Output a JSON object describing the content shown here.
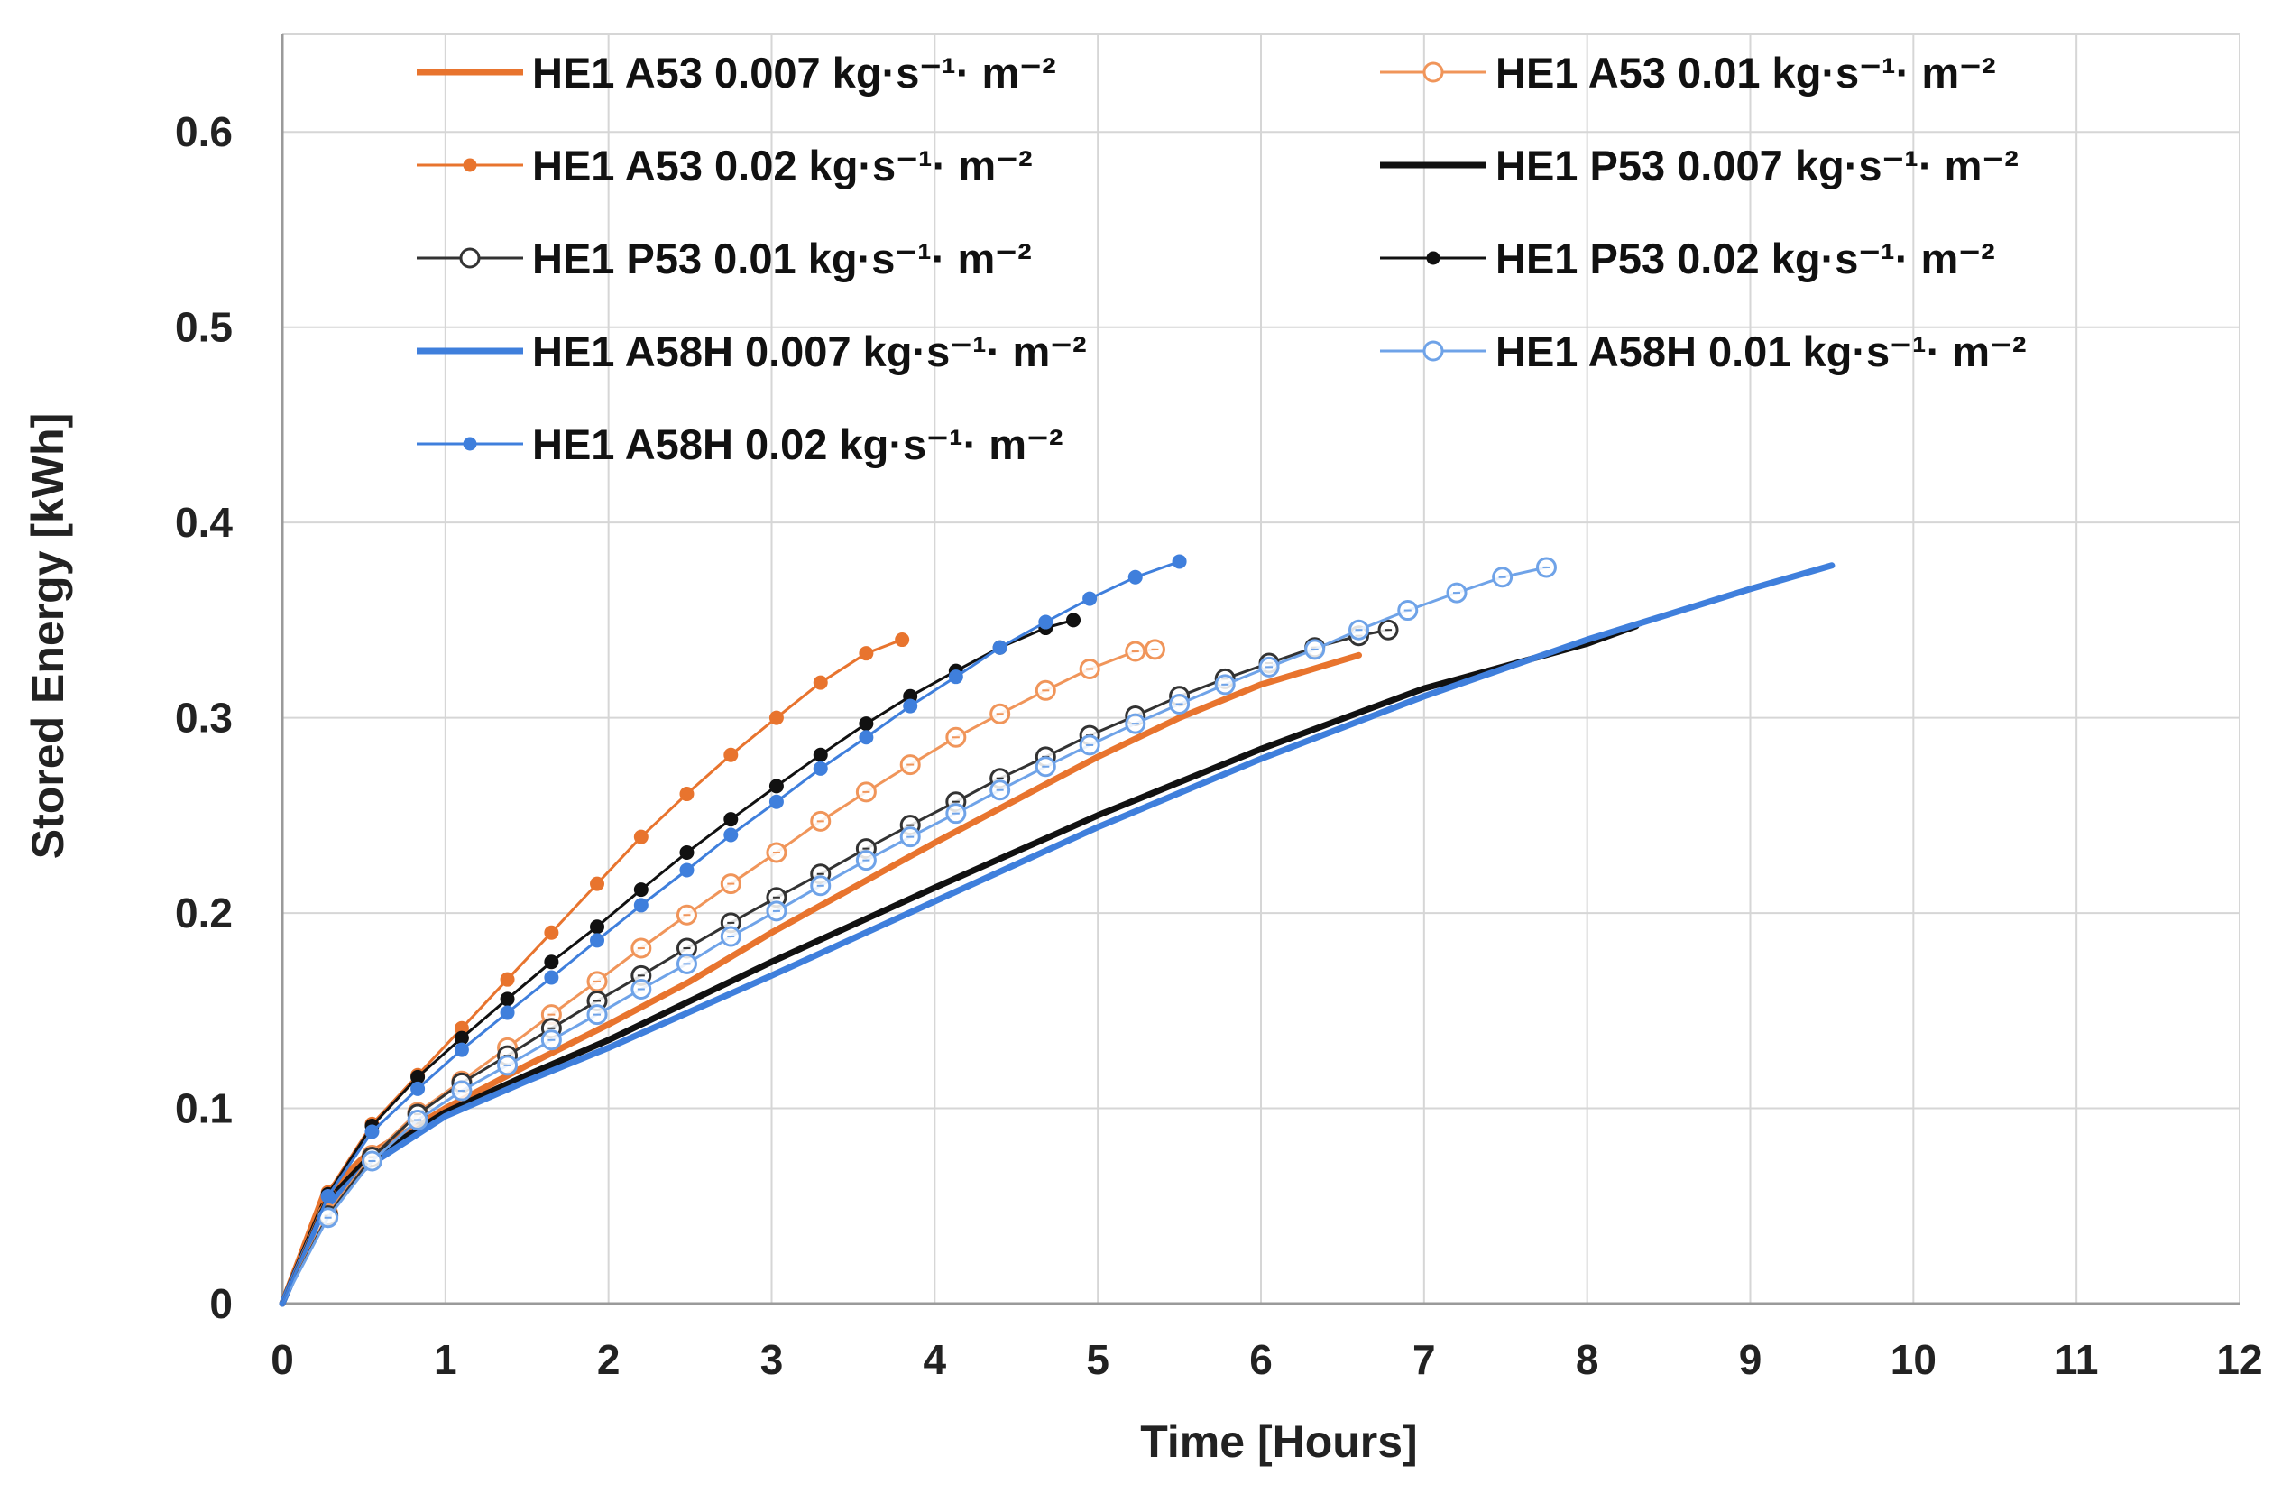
{
  "chart_data": {
    "type": "line",
    "title": "",
    "xlabel": "Time [Hours]",
    "ylabel": "Stored Energy [kWh]",
    "xlim": [
      0,
      12
    ],
    "ylim": [
      0,
      0.65
    ],
    "x_ticks": [
      "0",
      "1",
      "2",
      "3",
      "4",
      "5",
      "6",
      "7",
      "8",
      "9",
      "10",
      "11",
      "12"
    ],
    "y_ticks": [
      "0",
      "0.1",
      "0.2",
      "0.3",
      "0.4",
      "0.5",
      "0.6"
    ],
    "grid": true,
    "legend_position": "top",
    "series": [
      {
        "name": "HE1 A53 0.007 kg·s⁻¹· m⁻²",
        "color": "#e8742e",
        "marker": "none",
        "width": "thick",
        "x": [
          0,
          0.25,
          0.5,
          1,
          1.5,
          2,
          2.5,
          3,
          3.5,
          4,
          4.5,
          5,
          5.5,
          6,
          6.6
        ],
        "y": [
          0,
          0.055,
          0.075,
          0.1,
          0.122,
          0.143,
          0.165,
          0.19,
          0.213,
          0.236,
          0.258,
          0.28,
          0.3,
          0.317,
          0.332
        ]
      },
      {
        "name": "HE1 A53 0.01 kg·s⁻¹· m⁻²",
        "color": "#f0955a",
        "marker": "open",
        "width": "thin",
        "x": [
          0,
          0.28,
          0.55,
          0.83,
          1.1,
          1.38,
          1.65,
          1.93,
          2.2,
          2.48,
          2.75,
          3.03,
          3.3,
          3.58,
          3.85,
          4.13,
          4.4,
          4.68,
          4.95,
          5.23,
          5.35
        ],
        "y": [
          0,
          0.046,
          0.076,
          0.098,
          0.114,
          0.131,
          0.148,
          0.165,
          0.182,
          0.199,
          0.215,
          0.231,
          0.247,
          0.262,
          0.276,
          0.29,
          0.302,
          0.314,
          0.325,
          0.334,
          0.335
        ]
      },
      {
        "name": "HE1 A53 0.02 kg·s⁻¹· m⁻²",
        "color": "#e8742e",
        "marker": "filled",
        "width": "thin",
        "x": [
          0,
          0.28,
          0.55,
          0.83,
          1.1,
          1.38,
          1.65,
          1.93,
          2.2,
          2.48,
          2.75,
          3.03,
          3.3,
          3.58,
          3.8
        ],
        "y": [
          0,
          0.057,
          0.092,
          0.117,
          0.141,
          0.166,
          0.19,
          0.215,
          0.239,
          0.261,
          0.281,
          0.3,
          0.318,
          0.333,
          0.34
        ]
      },
      {
        "name": "HE1 P53 0.007 kg·s⁻¹· m⁻²",
        "color": "#111111",
        "marker": "none",
        "width": "thick",
        "x": [
          0,
          0.25,
          0.5,
          1,
          1.5,
          2,
          3,
          4,
          5,
          6,
          7,
          8,
          8.3
        ],
        "y": [
          0,
          0.05,
          0.072,
          0.098,
          0.117,
          0.135,
          0.175,
          0.213,
          0.25,
          0.284,
          0.315,
          0.338,
          0.347
        ]
      },
      {
        "name": "HE1 P53 0.01 kg·s⁻¹· m⁻²",
        "color": "#333333",
        "marker": "open",
        "width": "thin",
        "x": [
          0,
          0.28,
          0.55,
          0.83,
          1.1,
          1.38,
          1.65,
          1.93,
          2.2,
          2.48,
          2.75,
          3.03,
          3.3,
          3.58,
          3.85,
          4.13,
          4.4,
          4.68,
          4.95,
          5.23,
          5.5,
          5.78,
          6.05,
          6.33,
          6.6,
          6.78
        ],
        "y": [
          0,
          0.045,
          0.075,
          0.097,
          0.113,
          0.127,
          0.141,
          0.155,
          0.168,
          0.182,
          0.195,
          0.208,
          0.22,
          0.233,
          0.245,
          0.257,
          0.269,
          0.28,
          0.291,
          0.301,
          0.311,
          0.32,
          0.328,
          0.336,
          0.342,
          0.345
        ]
      },
      {
        "name": "HE1 P53 0.02 kg·s⁻¹· m⁻²",
        "color": "#111111",
        "marker": "filled",
        "width": "thin",
        "x": [
          0,
          0.28,
          0.55,
          0.83,
          1.1,
          1.38,
          1.65,
          1.93,
          2.2,
          2.48,
          2.75,
          3.03,
          3.3,
          3.58,
          3.85,
          4.13,
          4.4,
          4.68,
          4.85
        ],
        "y": [
          0,
          0.056,
          0.091,
          0.116,
          0.136,
          0.156,
          0.175,
          0.193,
          0.212,
          0.231,
          0.248,
          0.265,
          0.281,
          0.297,
          0.311,
          0.324,
          0.336,
          0.346,
          0.35
        ]
      },
      {
        "name": "HE1 A58H 0.007 kg·s⁻¹· m⁻²",
        "color": "#3f7fdc",
        "marker": "none",
        "width": "thick",
        "x": [
          0,
          0.25,
          0.5,
          1,
          1.5,
          2,
          3,
          4,
          5,
          6,
          7,
          8,
          9,
          9.5
        ],
        "y": [
          0,
          0.048,
          0.069,
          0.096,
          0.114,
          0.131,
          0.168,
          0.206,
          0.244,
          0.279,
          0.311,
          0.34,
          0.366,
          0.378
        ]
      },
      {
        "name": "HE1 A58H 0.01 kg·s⁻¹· m⁻²",
        "color": "#6fa3e8",
        "marker": "open",
        "width": "thin",
        "x": [
          0,
          0.28,
          0.55,
          0.83,
          1.1,
          1.38,
          1.65,
          1.93,
          2.2,
          2.48,
          2.75,
          3.03,
          3.3,
          3.58,
          3.85,
          4.13,
          4.4,
          4.68,
          4.95,
          5.23,
          5.5,
          5.78,
          6.05,
          6.33,
          6.6,
          6.9,
          7.2,
          7.48,
          7.75
        ],
        "y": [
          0,
          0.044,
          0.073,
          0.094,
          0.109,
          0.122,
          0.135,
          0.148,
          0.161,
          0.174,
          0.188,
          0.201,
          0.214,
          0.227,
          0.239,
          0.251,
          0.263,
          0.275,
          0.286,
          0.297,
          0.307,
          0.317,
          0.326,
          0.335,
          0.345,
          0.355,
          0.364,
          0.372,
          0.377
        ]
      },
      {
        "name": "HE1 A58H 0.02 kg·s⁻¹· m⁻²",
        "color": "#3f7fdc",
        "marker": "filled",
        "width": "thin",
        "x": [
          0,
          0.28,
          0.55,
          0.83,
          1.1,
          1.38,
          1.65,
          1.93,
          2.2,
          2.48,
          2.75,
          3.03,
          3.3,
          3.58,
          3.85,
          4.13,
          4.4,
          4.68,
          4.95,
          5.23,
          5.5
        ],
        "y": [
          0,
          0.055,
          0.088,
          0.11,
          0.13,
          0.149,
          0.167,
          0.186,
          0.204,
          0.222,
          0.24,
          0.257,
          0.274,
          0.29,
          0.306,
          0.321,
          0.336,
          0.349,
          0.361,
          0.372,
          0.38
        ]
      }
    ]
  }
}
